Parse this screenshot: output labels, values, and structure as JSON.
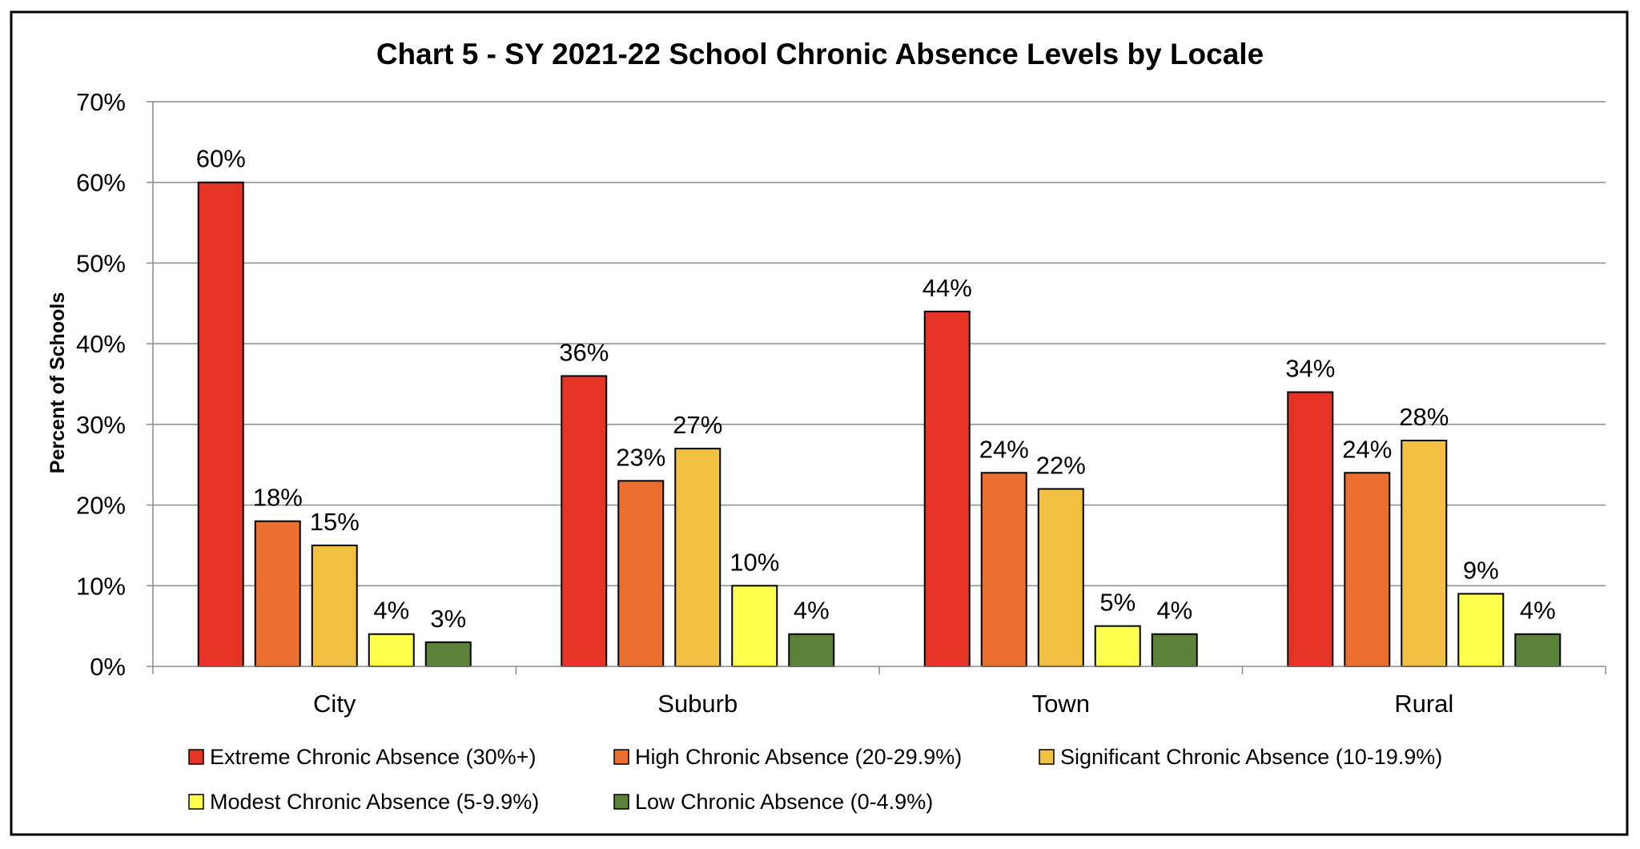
{
  "chart_data": {
    "type": "bar",
    "title": "Chart 5 - SY 2021-22 School Chronic Absence Levels by Locale",
    "xlabel": "",
    "ylabel": "Percent of Schools",
    "ylim": [
      0,
      70
    ],
    "y_tick_step": 10,
    "y_tick_labels": [
      "0%",
      "10%",
      "20%",
      "30%",
      "40%",
      "50%",
      "60%",
      "70%"
    ],
    "value_suffix": "%",
    "grid": true,
    "legend_position": "bottom",
    "categories": [
      "City",
      "Suburb",
      "Town",
      "Rural"
    ],
    "series": [
      {
        "name": "Extreme Chronic Absence (30%+)",
        "color": "#E53425",
        "values": [
          60,
          36,
          44,
          34
        ],
        "labels": [
          "60%",
          "36%",
          "44%",
          "34%"
        ]
      },
      {
        "name": "High Chronic Absence (20-29.9%)",
        "color": "#EB6F2E",
        "values": [
          18,
          23,
          24,
          24
        ],
        "labels": [
          "18%",
          "23%",
          "24%",
          "24%"
        ]
      },
      {
        "name": "Significant Chronic Absence (10-19.9%)",
        "color": "#F2C043",
        "values": [
          15,
          27,
          22,
          28
        ],
        "labels": [
          "15%",
          "27%",
          "22%",
          "28%"
        ]
      },
      {
        "name": "Modest Chronic Absence (5-9.9%)",
        "color": "#FFFF4D",
        "values": [
          4,
          10,
          5,
          9
        ],
        "labels": [
          "4%",
          "10%",
          "5%",
          "9%"
        ]
      },
      {
        "name": "Low Chronic Absence (0-4.9%)",
        "color": "#5B8239",
        "values": [
          3,
          4,
          4,
          4
        ],
        "labels": [
          "3%",
          "4%",
          "4%",
          "4%"
        ]
      }
    ]
  }
}
